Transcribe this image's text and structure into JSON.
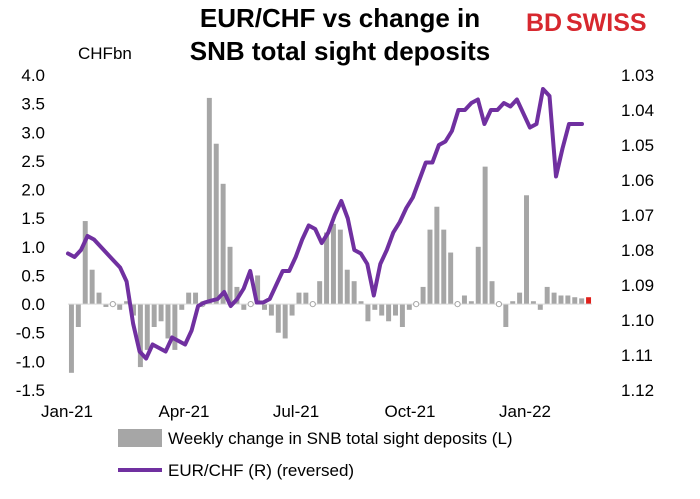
{
  "title_line1": "EUR/CHF vs change in",
  "title_line2": "SNB total sight deposits",
  "brand": {
    "bd": "BD",
    "swiss": "SWISS",
    "accent": "#d7282f"
  },
  "chart_data": {
    "type": "bar+line",
    "unit_left": "CHFbn",
    "left_axis": {
      "min": -1.5,
      "max": 4.0,
      "ticks": [
        "4.0",
        "3.5",
        "3.0",
        "2.5",
        "2.0",
        "1.5",
        "1.0",
        "0.5",
        "0.0",
        "-0.5",
        "-1.0",
        "-1.5"
      ]
    },
    "right_axis": {
      "reversed": true,
      "min": 1.03,
      "max": 1.12,
      "ticks": [
        "1.03",
        "1.04",
        "1.05",
        "1.06",
        "1.07",
        "1.08",
        "1.09",
        "1.10",
        "1.11",
        "1.12"
      ]
    },
    "x_ticks": [
      "Jan-21",
      "Apr-21",
      "Jul-21",
      "Oct-21",
      "Jan-22"
    ],
    "bar_color": "#a6a6a6",
    "last_bar_color": "#e0201b",
    "line_color": "#7030a0",
    "series": [
      {
        "name": "Weekly change in SNB total sight deposits (L)",
        "type": "bar",
        "values": [
          -1.2,
          -0.4,
          1.45,
          0.6,
          0.2,
          -0.05,
          0.0,
          -0.1,
          0.05,
          -0.2,
          -1.1,
          -0.8,
          -0.4,
          -0.3,
          -0.6,
          -0.8,
          -0.1,
          0.2,
          0.2,
          0.0,
          3.6,
          2.8,
          2.1,
          1.0,
          0.3,
          -0.1,
          0.0,
          0.5,
          -0.1,
          -0.2,
          -0.5,
          -0.6,
          -0.2,
          0.2,
          0.2,
          0.0,
          0.4,
          1.25,
          1.4,
          1.3,
          0.6,
          0.4,
          0.05,
          -0.3,
          -0.1,
          -0.2,
          -0.3,
          -0.2,
          -0.4,
          -0.1,
          0.0,
          0.3,
          1.3,
          1.7,
          1.3,
          0.9,
          0.0,
          0.15,
          0.05,
          1.0,
          2.4,
          0.4,
          0.0,
          -0.4,
          0.05,
          0.2,
          1.9,
          0.05,
          -0.1,
          0.3,
          0.2,
          0.15,
          0.15,
          0.12,
          0.1,
          0.12
        ]
      },
      {
        "name": "EUR/CHF (R) (reversed)",
        "type": "line",
        "values": [
          1.081,
          1.082,
          1.08,
          1.076,
          1.077,
          1.079,
          1.081,
          1.083,
          1.085,
          1.089,
          1.101,
          1.109,
          1.111,
          1.107,
          1.108,
          1.109,
          1.105,
          1.106,
          1.107,
          1.103,
          1.096,
          1.095,
          1.0945,
          1.094,
          1.092,
          1.096,
          1.094,
          1.091,
          1.086,
          1.095,
          1.095,
          1.094,
          1.09,
          1.086,
          1.086,
          1.082,
          1.077,
          1.073,
          1.074,
          1.078,
          1.075,
          1.07,
          1.066,
          1.071,
          1.08,
          1.081,
          1.084,
          1.093,
          1.084,
          1.08,
          1.075,
          1.072,
          1.068,
          1.065,
          1.06,
          1.055,
          1.055,
          1.05,
          1.049,
          1.046,
          1.04,
          1.04,
          1.038,
          1.037,
          1.044,
          1.04,
          1.04,
          1.038,
          1.039,
          1.037,
          1.041,
          1.045,
          1.044,
          1.034,
          1.036,
          1.059,
          1.051,
          1.044,
          1.044,
          1.044
        ]
      }
    ]
  }
}
